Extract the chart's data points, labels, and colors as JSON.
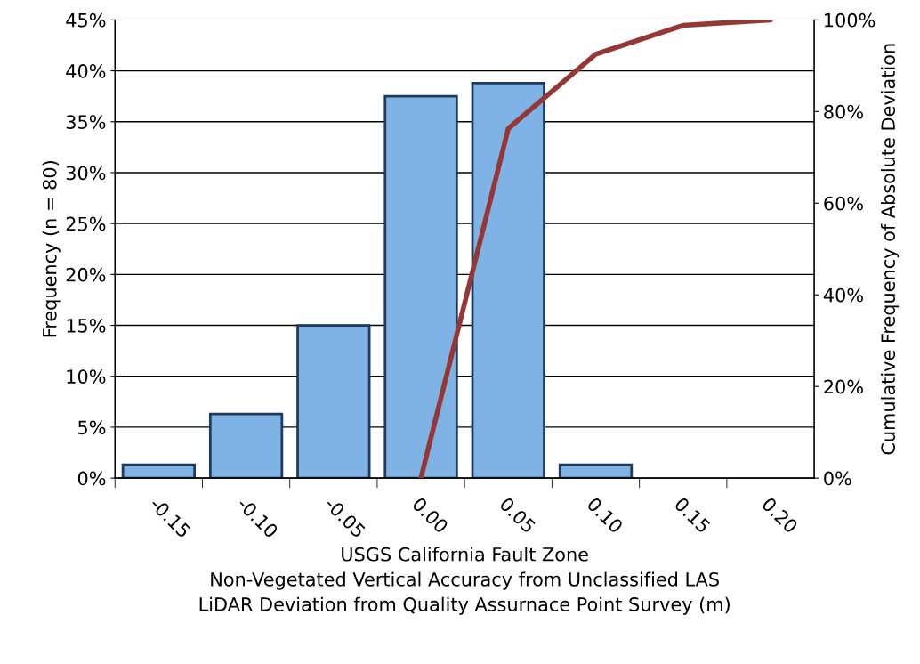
{
  "chart_data": {
    "type": "bar",
    "xlabel": "USGS California Fault Zone\nNon-Vegetated Vertical Accuracy from Unclassified LAS\nLiDAR Deviation from Quality Assurnace Point Survey (m)",
    "ylabel": "Frequency (n = 80)",
    "y2label": "Cumulative Frequency of Absolute Deviation",
    "categories": [
      "-0.15",
      "-0.10",
      "-0.05",
      "0.00",
      "0.05",
      "0.10",
      "0.15",
      "0.20"
    ],
    "series": [
      {
        "color": "#7fb2e5",
        "values": [
          1.3,
          6.3,
          15,
          37.5,
          38.8,
          1.3,
          0,
          0
        ]
      },
      {
        "type": "line",
        "axis": "y2",
        "color": "#953735",
        "values": [
          null,
          null,
          null,
          0,
          76.3,
          92.5,
          98.8,
          100
        ]
      }
    ],
    "ylim": [
      0,
      45
    ],
    "yticks": [
      {
        "value": 0,
        "label": "0%"
      },
      {
        "value": 5,
        "label": "5%"
      },
      {
        "value": 10,
        "label": "10%"
      },
      {
        "value": 15,
        "label": "15%"
      },
      {
        "value": 20,
        "label": "20%"
      },
      {
        "value": 25,
        "label": "25%"
      },
      {
        "value": 30,
        "label": "30%"
      },
      {
        "value": 35,
        "label": "35%"
      },
      {
        "value": 40,
        "label": "40%"
      },
      {
        "value": 45,
        "label": "45%"
      }
    ],
    "y2lim": [
      0,
      100
    ],
    "y2ticks": [
      {
        "value": 0,
        "label": "0%"
      },
      {
        "value": 20,
        "label": "20%"
      },
      {
        "value": 40,
        "label": "40%"
      },
      {
        "value": 60,
        "label": "60%"
      },
      {
        "value": 80,
        "label": "80%"
      },
      {
        "value": 100,
        "label": "100%"
      }
    ],
    "grid": "y",
    "marker": "none",
    "line_style": "solid"
  }
}
